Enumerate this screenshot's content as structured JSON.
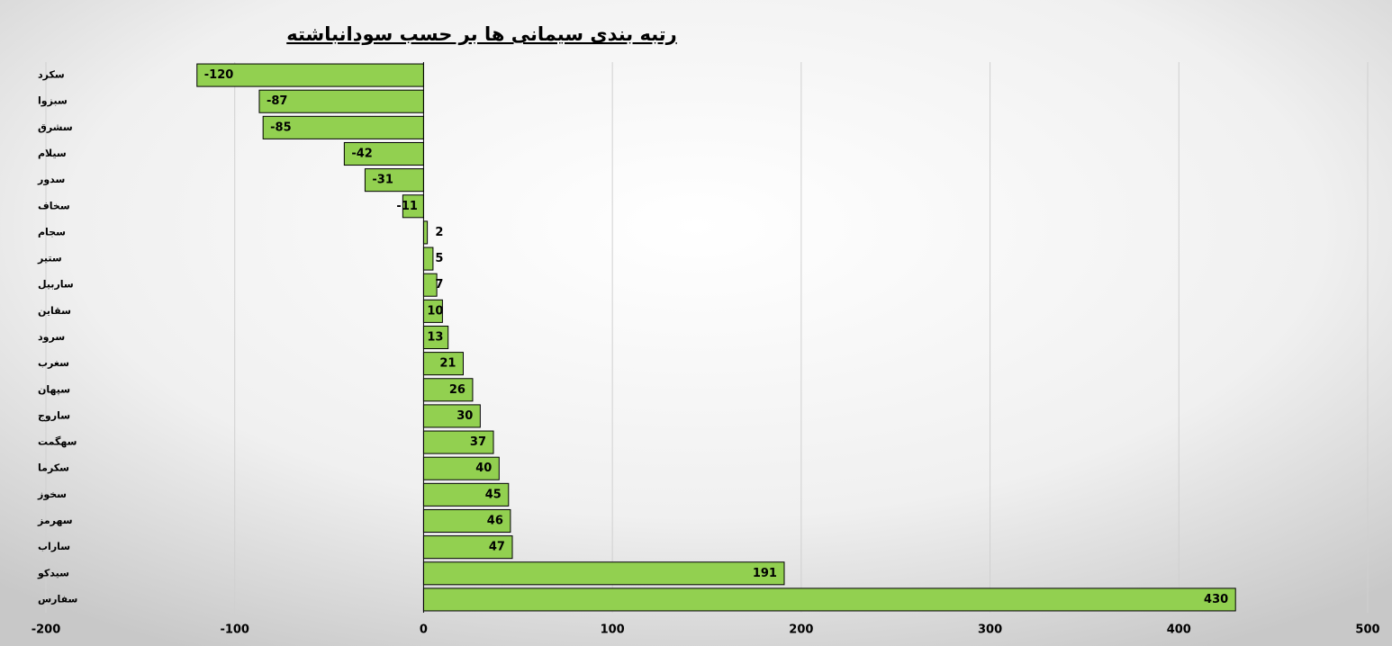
{
  "chart_data": {
    "type": "barh",
    "title": "رتبه بندی سیمانی ها بر حسب سودانباشته",
    "categories": [
      "سکرد",
      "سبزوا",
      "سشرق",
      "سیلام",
      "سدور",
      "سخاف",
      "سجام",
      "ستیر",
      "ساربیل",
      "سقاین",
      "سرود",
      "سغرب",
      "سپهان",
      "ساروج",
      "سهگمت",
      "سکرما",
      "سخوز",
      "سهرمز",
      "ساراب",
      "سیدکو",
      "سفارس"
    ],
    "values": [
      -120,
      -87,
      -85,
      -42,
      -31,
      -11,
      2,
      5,
      7,
      10,
      13,
      21,
      26,
      30,
      37,
      40,
      45,
      46,
      47,
      191,
      430
    ],
    "color": "#92d050",
    "xlim": [
      -200,
      500
    ],
    "xticks": [
      -200,
      -100,
      0,
      100,
      200,
      300,
      400,
      500
    ],
    "grid": true
  }
}
